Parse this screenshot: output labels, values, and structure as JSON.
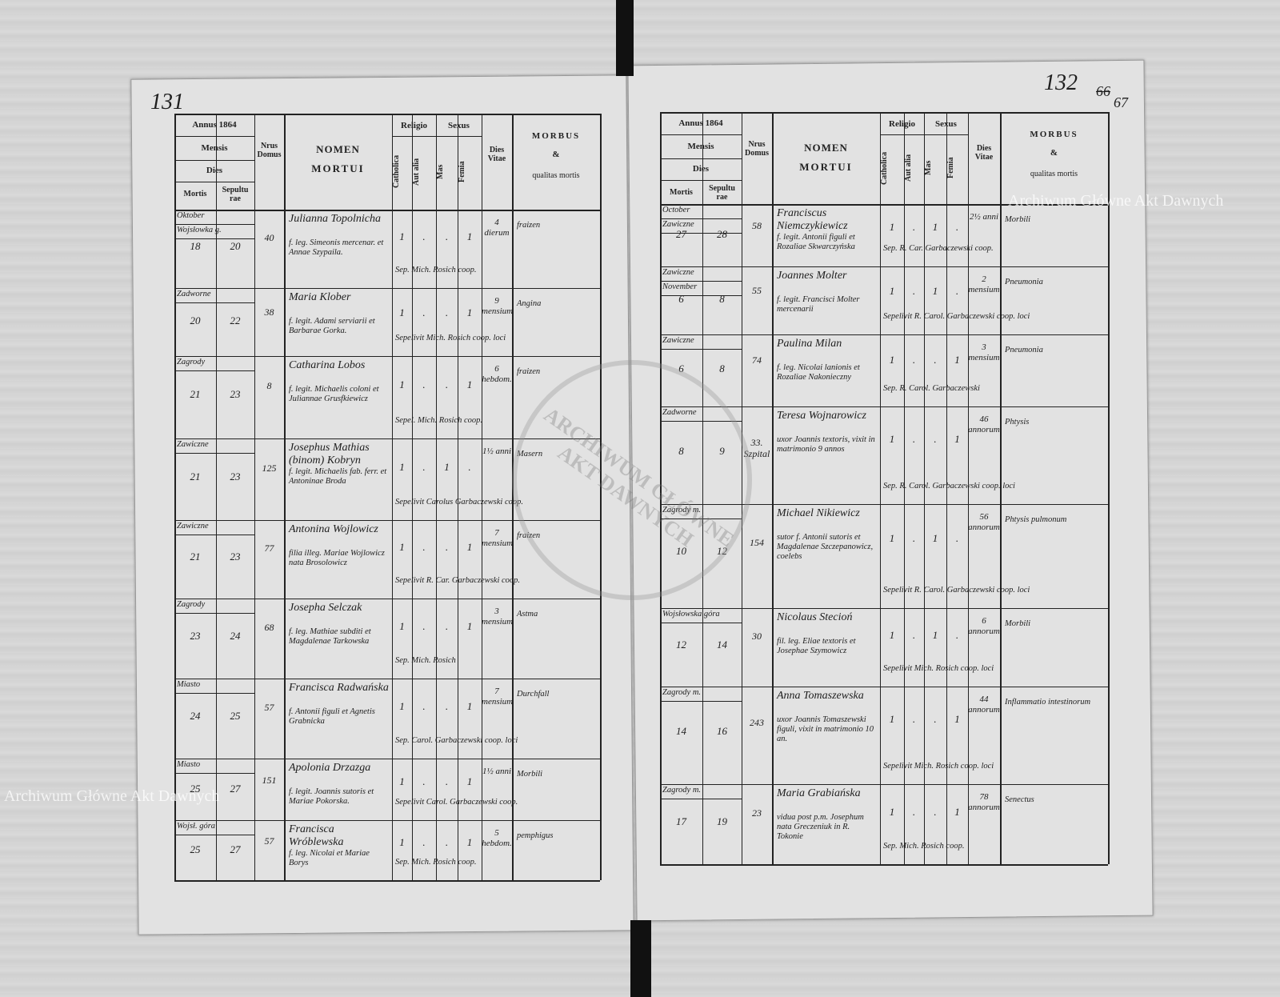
{
  "page_numbers": {
    "left": "131",
    "right": "132",
    "struck": "66",
    "corrected": "67"
  },
  "watermarks": [
    "Archiwum Główne Akt Dawnych",
    "Archiwum Główne Akt Dawnych"
  ],
  "stamp": "ARCHIWUM GŁÓWNE AKT DAWNYCH",
  "pages": [
    {
      "header": {
        "annus": "Annus 1864",
        "mensis": "Mensis",
        "dies": "Dies",
        "mortis": "Mortis",
        "sepultura": "Sepulturae",
        "domus": "Nrus Domus",
        "nomen": "NOMEN",
        "mortui": "MORTUI",
        "religio": "Religio",
        "catholica": "Catholica",
        "alia": "Aut alia",
        "sexus": "Sexus",
        "mas": "Mas",
        "femina": "Femia",
        "vitae": "Dies Vitae",
        "morbus": "MORBUS",
        "amp": "&",
        "qualitas": "qualitas mortis"
      },
      "rows": [
        {
          "month": "Oktober",
          "place": "Wojsłowka g.",
          "mortis": "18",
          "sepultura": "20",
          "domus": "40",
          "name": "Julianna Topolnicha",
          "details": "f. leg. Simeonis mercenar. et Annae Szypaila.",
          "catholica": "1",
          "alia": ".",
          "mas": ".",
          "femina": "1",
          "vitae": "4 dierum",
          "morbus": "fraizen",
          "sepelivit": "Sep. Mich. Rosich coop."
        },
        {
          "place": "Zadworne",
          "mortis": "20",
          "sepultura": "22",
          "domus": "38",
          "name": "Maria Klober",
          "details": "f. legit. Adami serviarii et Barbarae Gorka.",
          "catholica": "1",
          "alia": ".",
          "mas": ".",
          "femina": "1",
          "vitae": "9 mensium",
          "morbus": "Angina",
          "sepelivit": "Sepelivit Mich. Rosich coop. loci"
        },
        {
          "place": "Zagrody",
          "mortis": "21",
          "sepultura": "23",
          "domus": "8",
          "name": "Catharina Lobos",
          "details": "f. legit. Michaelis coloni et Juliannae Grusfkiewicz",
          "catholica": "1",
          "alia": ".",
          "mas": ".",
          "femina": "1",
          "vitae": "6 hebdom.",
          "morbus": "fraizen",
          "sepelivit": "Sepel. Mich. Rosich coop."
        },
        {
          "place": "Zawiczne",
          "mortis": "21",
          "sepultura": "23",
          "domus": "125",
          "name": "Josephus Mathias (binom) Kobryn",
          "details": "f. legit. Michaelis fab. ferr. et Antoninae Broda",
          "catholica": "1",
          "alia": ".",
          "mas": "1",
          "femina": ".",
          "vitae": "1½ anni",
          "morbus": "Masern",
          "sepelivit": "Sepelivit Carolus Garbaczewski coop."
        },
        {
          "place": "Zawiczne",
          "mortis": "21",
          "sepultura": "23",
          "domus": "77",
          "name": "Antonina Wojlowicz",
          "details": "filia illeg. Mariae Wojlowicz nata Brosolowicz",
          "catholica": "1",
          "alia": ".",
          "mas": ".",
          "femina": "1",
          "vitae": "7 mensium",
          "morbus": "fraizen",
          "sepelivit": "Sepelivit R. Car. Garbaczewski coop."
        },
        {
          "place": "Zagrody",
          "mortis": "23",
          "sepultura": "24",
          "domus": "68",
          "name": "Josepha Selczak",
          "details": "f. leg. Mathiae subditi et Magdalenae Tarkowska",
          "catholica": "1",
          "alia": ".",
          "mas": ".",
          "femina": "1",
          "vitae": "3 mensium",
          "morbus": "Astma",
          "sepelivit": "Sep. Mich. Rosich"
        },
        {
          "place": "Miasto",
          "mortis": "24",
          "sepultura": "25",
          "domus": "57",
          "name": "Francisca Radwańska",
          "details": "f. Antonii figuli et Agnetis Grabnicka",
          "catholica": "1",
          "alia": ".",
          "mas": ".",
          "femina": "1",
          "vitae": "7 mensium",
          "morbus": "Durchfall",
          "sepelivit": "Sep. Carol. Garbaczewski coop. loci"
        },
        {
          "place": "Miasto",
          "mortis": "25",
          "sepultura": "27",
          "domus": "151",
          "name": "Apolonia Drzazga",
          "details": "f. legit. Joannis sutoris et Mariae Pokorska.",
          "catholica": "1",
          "alia": ".",
          "mas": ".",
          "femina": "1",
          "vitae": "1½ anni",
          "morbus": "Morbili",
          "sepelivit": "Sepelivit Carol. Garbaczewski coop."
        },
        {
          "place": "Wojsł. góra",
          "mortis": "25",
          "sepultura": "27",
          "domus": "57",
          "name": "Francisca Wróblewska",
          "details": "f. leg. Nicolai et Mariae Borys",
          "catholica": "1",
          "alia": ".",
          "mas": ".",
          "femina": "1",
          "vitae": "5 hebdom.",
          "morbus": "pemphigus",
          "sepelivit": "Sep. Mich. Rosich coop."
        }
      ]
    },
    {
      "header": {
        "annus": "Annus 1864",
        "mensis": "Mensis",
        "dies": "Dies",
        "mortis": "Mortis",
        "sepultura": "Sepulturae",
        "domus": "Nrus Domus",
        "nomen": "NOMEN",
        "mortui": "MORTUI",
        "religio": "Religio",
        "catholica": "Catholica",
        "alia": "Aut alia",
        "sexus": "Sexus",
        "mas": "Mas",
        "femina": "Femia",
        "vitae": "Dies Vitae",
        "morbus": "MORBUS",
        "amp": "&",
        "qualitas": "qualitas mortis"
      },
      "rows": [
        {
          "month": "October",
          "place": "Zawiczne",
          "mortis": "27",
          "sepultura": "28",
          "domus": "58",
          "name": "Franciscus Niemczykiewicz",
          "details": "f. legit. Antonii figuli et Rozaliae Skwarczyńska",
          "catholica": "1",
          "alia": ".",
          "mas": "1",
          "femina": ".",
          "vitae": "2½ anni",
          "morbus": "Morbili",
          "sepelivit": "Sep. R. Car. Garbaczewski coop."
        },
        {
          "place": "Zawiczne",
          "month": "November",
          "mortis": "6",
          "sepultura": "8",
          "domus": "55",
          "name": "Joannes Molter",
          "details": "f. legit. Francisci Molter mercenarii",
          "catholica": "1",
          "alia": ".",
          "mas": "1",
          "femina": ".",
          "vitae": "2 mensium",
          "morbus": "Pneumonia",
          "sepelivit": "Sepelivit R. Carol. Garbaczewski coop. loci"
        },
        {
          "place": "Zawiczne",
          "mortis": "6",
          "sepultura": "8",
          "domus": "74",
          "name": "Paulina Milan",
          "details": "f. leg. Nicolai lanionis et Rozaliae Nakonieczny",
          "catholica": "1",
          "alia": ".",
          "mas": ".",
          "femina": "1",
          "vitae": "3 mensium",
          "morbus": "Pneumonia",
          "sepelivit": "Sep. R. Carol. Garbaczewski"
        },
        {
          "place": "Zadworne",
          "mortis": "8",
          "sepultura": "9",
          "domus": "33. Szpital",
          "name": "Teresa Wojnarowicz",
          "details": "uxor Joannis textoris, vixit in matrimonio 9 annos",
          "catholica": "1",
          "alia": ".",
          "mas": ".",
          "femina": "1",
          "vitae": "46 annorum",
          "morbus": "Phtysis",
          "sepelivit": "Sep. R. Carol. Garbaczewski coop. loci"
        },
        {
          "place": "Zagrody m.",
          "mortis": "10",
          "sepultura": "12",
          "domus": "154",
          "name": "Michael Nikiewicz",
          "details": "sutor f. Antonii sutoris et Magdalenae Szczepanowicz, coelebs",
          "catholica": "1",
          "alia": ".",
          "mas": "1",
          "femina": ".",
          "vitae": "56 annorum",
          "morbus": "Phtysis pulmonum",
          "sepelivit": "Sepelivit R. Carol. Garbaczewski coop. loci"
        },
        {
          "place": "Wojsłowska góra",
          "mortis": "12",
          "sepultura": "14",
          "domus": "30",
          "name": "Nicolaus Stecioń",
          "details": "fil. leg. Eliae textoris et Josephae Szymowicz",
          "catholica": "1",
          "alia": ".",
          "mas": "1",
          "femina": ".",
          "vitae": "6 annorum",
          "morbus": "Morbili",
          "sepelivit": "Sepelivit Mich. Rosich coop. loci"
        },
        {
          "place": "Zagrody m.",
          "mortis": "14",
          "sepultura": "16",
          "domus": "243",
          "name": "Anna Tomaszewska",
          "details": "uxor Joannis Tomaszewski figuli, vixit in matrimonio 10 an.",
          "catholica": "1",
          "alia": ".",
          "mas": ".",
          "femina": "1",
          "vitae": "44 annorum",
          "morbus": "Inflammatio intestinorum",
          "sepelivit": "Sepelivit Mich. Rosich coop. loci"
        },
        {
          "place": "Zagrody m.",
          "mortis": "17",
          "sepultura": "19",
          "domus": "23",
          "name": "Maria Grabiańska",
          "details": "vidua post p.m. Josephum nata Greczeniuk in R. Tokonie",
          "catholica": "1",
          "alia": ".",
          "mas": ".",
          "femina": "1",
          "vitae": "78 annorum",
          "morbus": "Senectus",
          "sepelivit": "Sep. Mich. Rosich coop."
        }
      ]
    }
  ]
}
